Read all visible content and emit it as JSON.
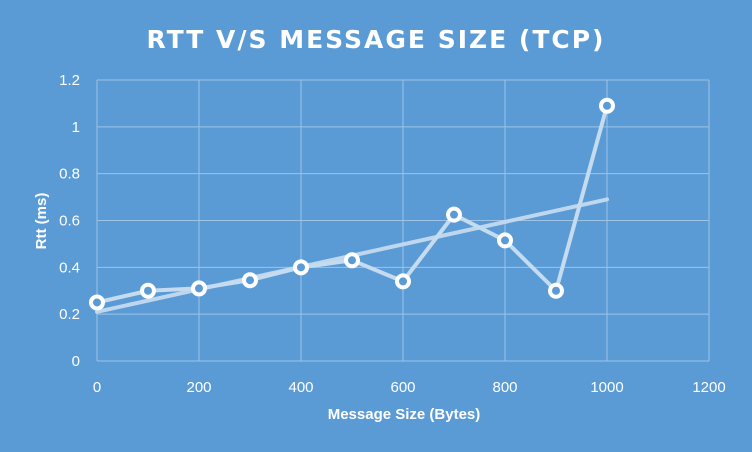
{
  "chart_data": {
    "type": "scatter",
    "title": "RTT V/S MESSAGE SIZE (TCP)",
    "xlabel": "Message Size (Bytes)",
    "ylabel": "Rtt (ms)",
    "xlim": [
      0,
      1200
    ],
    "ylim": [
      0,
      1.2
    ],
    "x_ticks": [
      0,
      200,
      400,
      600,
      800,
      1000,
      1200
    ],
    "y_ticks": [
      0,
      0.2,
      0.4,
      0.6,
      0.8,
      1,
      1.2
    ],
    "x_tick_labels": [
      "0",
      "200",
      "400",
      "600",
      "800",
      "1000",
      "1200"
    ],
    "y_tick_labels": [
      "0",
      "0.2",
      "0.4",
      "0.6",
      "0.8",
      "1",
      "1.2"
    ],
    "grid": true,
    "legend": "none",
    "series": [
      {
        "x": [
          0,
          100,
          200,
          300,
          400,
          500,
          600,
          700,
          800,
          900,
          1000
        ],
        "y": [
          0.25,
          0.3,
          0.31,
          0.345,
          0.4,
          0.43,
          0.34,
          0.625,
          0.515,
          0.3,
          1.09
        ],
        "lines": "straight",
        "markers": "circle"
      }
    ],
    "trendline": {
      "type": "linear",
      "x": [
        0,
        1000
      ],
      "y": [
        0.21,
        0.69
      ]
    },
    "colors": {
      "background": "#5b9bd5",
      "series": "#c5dbf0",
      "marker_edge": "#ffffff",
      "grid": "#9dc3e6",
      "text": "#ffffff"
    }
  }
}
